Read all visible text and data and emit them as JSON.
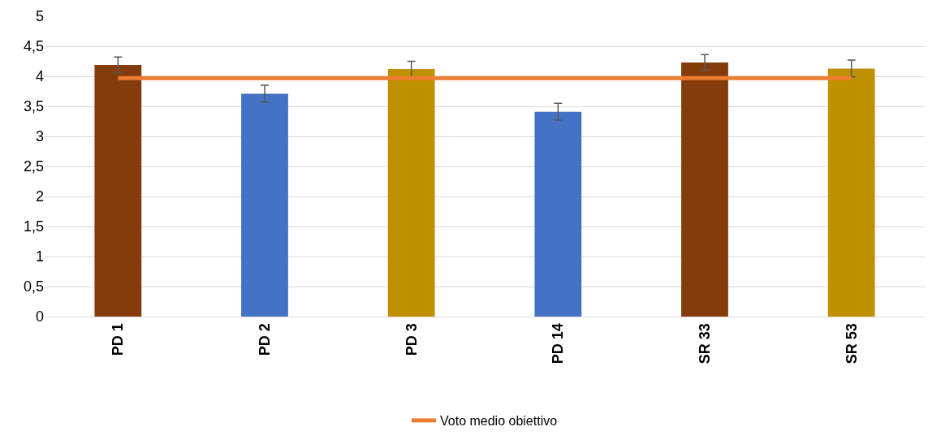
{
  "chart_data": {
    "type": "bar",
    "categories": [
      "PD 1",
      "PD 2",
      "PD 3",
      "PD 14",
      "SR 33",
      "SR 53"
    ],
    "series": [
      {
        "colors": [
          "#843c0c",
          "#4472c4",
          "#bf9000",
          "#4472c4",
          "#843c0c",
          "#bf9000"
        ],
        "values": [
          4.19,
          3.71,
          4.12,
          3.41,
          4.23,
          4.13
        ],
        "errors": [
          0.13,
          0.14,
          0.13,
          0.14,
          0.13,
          0.14
        ]
      },
      {
        "type": "line",
        "name": "Voto medio obiettivo",
        "color": "#ed7d31",
        "values": [
          3.97,
          3.97,
          3.97,
          3.97,
          3.97,
          3.97
        ]
      }
    ],
    "ylim": [
      0,
      5
    ],
    "yticks": [
      0,
      {
        "value": 0.5,
        "label": "0,5"
      },
      1,
      {
        "value": 1.5,
        "label": "1,5"
      },
      2,
      {
        "value": 2.5,
        "label": "2,5"
      },
      3,
      {
        "value": 3.5,
        "label": "3,5"
      },
      4,
      {
        "value": 4.5,
        "label": "4,5"
      },
      5
    ],
    "grid": "y",
    "legend": "bottom",
    "marker": "none",
    "line_style": "solid"
  }
}
